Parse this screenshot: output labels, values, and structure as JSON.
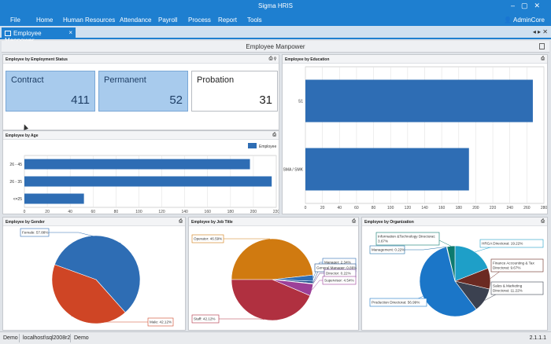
{
  "app": {
    "title": "Sigma HRIS",
    "user": "AdminCore"
  },
  "menu": [
    "File",
    "Home",
    "Human Resources",
    "Attendance",
    "Payroll",
    "Process",
    "Report",
    "Tools"
  ],
  "tab": {
    "label": "Employee Manpower",
    "close": "×"
  },
  "page": {
    "title": "Employee Manpower"
  },
  "panels": {
    "status": {
      "title": "Employee by Employment Status",
      "cards": [
        {
          "label": "Contract",
          "value": "411"
        },
        {
          "label": "Permanent",
          "value": "52"
        },
        {
          "label": "Probation",
          "value": "31"
        }
      ]
    },
    "age": {
      "title": "Employee by Age"
    },
    "education": {
      "title": "Employee by Education"
    },
    "gender": {
      "title": "Employee by Gender"
    },
    "jobtitle": {
      "title": "Employee by Job Title"
    },
    "org": {
      "title": "Employee by Organization"
    }
  },
  "chart_data": [
    {
      "type": "bar",
      "title": "Employee by Age",
      "orientation": "horizontal",
      "categories": [
        "26 - 45",
        "26 - 35",
        "<=25"
      ],
      "series": [
        {
          "name": "Employee",
          "values": [
            197,
            216,
            52
          ],
          "color": "#2e6db4"
        }
      ],
      "xlim": [
        0,
        220
      ],
      "xticks": [
        0,
        20,
        40,
        60,
        80,
        100,
        120,
        140,
        160,
        180,
        200,
        220
      ],
      "legend": "top-right",
      "grid": true
    },
    {
      "type": "bar",
      "title": "Employee by Education",
      "orientation": "horizontal",
      "categories": [
        "S1",
        "SMA / SMK"
      ],
      "series": [
        {
          "values": [
            267,
            192
          ],
          "color": "#2e6db4"
        }
      ],
      "xlim": [
        0,
        280
      ],
      "xticks": [
        0,
        20,
        40,
        60,
        80,
        100,
        120,
        140,
        160,
        180,
        200,
        220,
        240,
        260,
        280
      ],
      "grid": true
    },
    {
      "type": "pie",
      "title": "Employee by Gender",
      "slices": [
        {
          "label": "Female: 57.88%",
          "value": 57.88,
          "color": "#2e6db4"
        },
        {
          "label": "Male: 42.12%",
          "value": 42.12,
          "color": "#cf4525"
        }
      ]
    },
    {
      "type": "pie",
      "title": "Employee by Job Title",
      "slices": [
        {
          "label": "Operator: 46.59%",
          "value": 46.59,
          "color": "#d07a10"
        },
        {
          "label": "Manager: 2.34%",
          "value": 2.34,
          "color": "#2e6db4"
        },
        {
          "label": "General Manager: 0.86%",
          "value": 0.86,
          "color": "#1f4d8c"
        },
        {
          "label": "Director: 0.22%",
          "value": 0.22,
          "color": "#5a2d82"
        },
        {
          "label": "Supervisor: 4.54%",
          "value": 4.54,
          "color": "#9c3f98"
        },
        {
          "label": "Staff: 42.12%",
          "value": 42.12,
          "color": "#b03040"
        }
      ]
    },
    {
      "type": "pie",
      "title": "Employee by Organization",
      "slices": [
        {
          "label": "HRGA Directorat: 19.22%",
          "value": 19.22,
          "color": "#1e9fc8"
        },
        {
          "label": "Finance Accounting & Tax Directorat: 9.67%",
          "value": 9.67,
          "color": "#6b2a22"
        },
        {
          "label": "Sales & Marketing Directorat: 11.22%",
          "value": 11.22,
          "color": "#3b4150"
        },
        {
          "label": "Production Directorat: 56.99%",
          "value": 56.99,
          "color": "#1b76c8"
        },
        {
          "label": "Management: 0.22%",
          "value": 0.22,
          "color": "#1e6ea8"
        },
        {
          "label": "Information & Technology Directorat: 3.67%",
          "value": 3.67,
          "color": "#0d7a6e"
        }
      ]
    }
  ],
  "status_bar": {
    "mode": "Demo",
    "server": "localhost\\sql2008r2",
    "db": "Demo",
    "version": "2.1.1.1"
  }
}
